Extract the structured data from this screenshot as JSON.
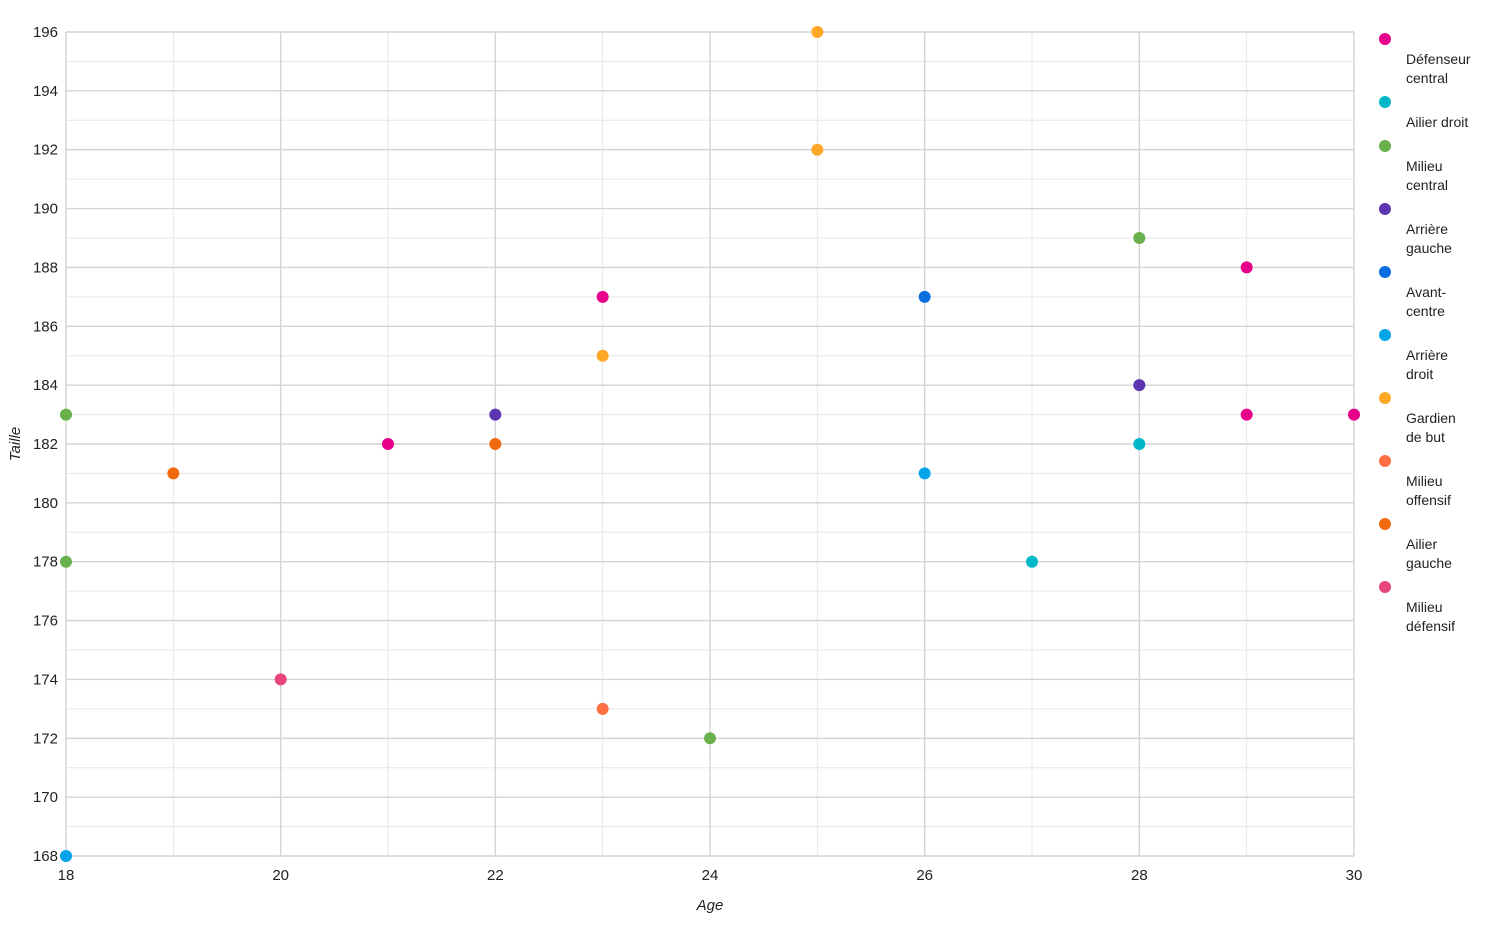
{
  "chart_data": {
    "type": "scatter",
    "title": "",
    "xlabel": "Age",
    "ylabel": "Taille",
    "xlim": [
      18,
      30
    ],
    "ylim": [
      168,
      196
    ],
    "x_ticks": [
      18,
      20,
      22,
      24,
      26,
      28,
      30
    ],
    "y_ticks": [
      168,
      170,
      172,
      174,
      176,
      178,
      180,
      182,
      184,
      186,
      188,
      190,
      192,
      194,
      196
    ],
    "grid": true,
    "legend_position": "right",
    "series": [
      {
        "name": "Défenseur central",
        "legend_lines": [
          "Défenseur",
          "central"
        ],
        "color": "#e6008a",
        "points": [
          {
            "x": 21,
            "y": 182
          },
          {
            "x": 23,
            "y": 187
          },
          {
            "x": 29,
            "y": 188
          },
          {
            "x": 29,
            "y": 183
          },
          {
            "x": 30,
            "y": 183
          }
        ]
      },
      {
        "name": "Ailier droit",
        "legend_lines": [
          "Ailier droit"
        ],
        "color": "#00b8c8",
        "points": [
          {
            "x": 27,
            "y": 178
          },
          {
            "x": 28,
            "y": 182
          }
        ]
      },
      {
        "name": "Milieu central",
        "legend_lines": [
          "Milieu",
          "central"
        ],
        "color": "#6ab04c",
        "points": [
          {
            "x": 18,
            "y": 183
          },
          {
            "x": 18,
            "y": 178
          },
          {
            "x": 24,
            "y": 172
          },
          {
            "x": 28,
            "y": 189
          }
        ]
      },
      {
        "name": "Arrière gauche",
        "legend_lines": [
          "Arrière",
          "gauche"
        ],
        "color": "#5e35b1",
        "points": [
          {
            "x": 22,
            "y": 183
          },
          {
            "x": 28,
            "y": 184
          }
        ]
      },
      {
        "name": "Avant-centre",
        "legend_lines": [
          "Avant-",
          "centre"
        ],
        "color": "#0a6ee0",
        "points": [
          {
            "x": 26,
            "y": 187
          }
        ]
      },
      {
        "name": "Arrière droit",
        "legend_lines": [
          "Arrière",
          "droit"
        ],
        "color": "#03a4e8",
        "points": [
          {
            "x": 18,
            "y": 168
          },
          {
            "x": 26,
            "y": 181
          }
        ]
      },
      {
        "name": "Gardien de but",
        "legend_lines": [
          "Gardien",
          "de but"
        ],
        "color": "#ffa726",
        "points": [
          {
            "x": 25,
            "y": 196
          },
          {
            "x": 25,
            "y": 192
          },
          {
            "x": 23,
            "y": 185
          }
        ]
      },
      {
        "name": "Milieu offensif",
        "legend_lines": [
          "Milieu",
          "offensif"
        ],
        "color": "#ff7043",
        "points": [
          {
            "x": 23,
            "y": 173
          }
        ]
      },
      {
        "name": "Ailier gauche",
        "legend_lines": [
          "Ailier",
          "gauche"
        ],
        "color": "#f26a10",
        "points": [
          {
            "x": 19,
            "y": 181
          },
          {
            "x": 22,
            "y": 182
          }
        ]
      },
      {
        "name": "Milieu défensif",
        "legend_lines": [
          "Milieu",
          "défensif"
        ],
        "color": "#e8457a",
        "points": [
          {
            "x": 20,
            "y": 174
          }
        ]
      }
    ]
  }
}
